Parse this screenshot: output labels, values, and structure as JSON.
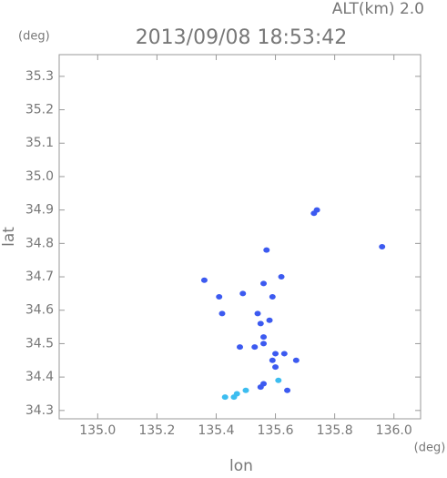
{
  "chart_data": {
    "type": "scatter",
    "title": "2013/09/08 18:53:42",
    "subtitle": "ALT(km) 2.0",
    "y_unit": "(deg)",
    "x_unit": "(deg)",
    "x_label": "lon",
    "y_label": "lat",
    "xlim": [
      134.87,
      136.09
    ],
    "ylim": [
      34.275,
      35.365
    ],
    "xticks": [
      {
        "value": 135.0,
        "label": "135.0"
      },
      135.2,
      135.4,
      135.6,
      135.8,
      {
        "value": 136.0,
        "label": "136.0"
      }
    ],
    "yticks": [
      34.3,
      34.4,
      34.5,
      34.6,
      34.7,
      34.8,
      34.9,
      {
        "value": 35.0,
        "label": "35.0"
      },
      35.1,
      35.2,
      35.3
    ],
    "series": [
      {
        "color": "#3c5af0",
        "x": [
          135.74,
          135.73,
          135.96,
          135.57,
          135.36,
          135.62,
          135.41,
          135.49,
          135.56,
          135.59,
          135.42,
          135.54,
          135.55,
          135.58,
          135.56,
          135.56,
          135.48,
          135.53,
          135.63,
          135.67,
          135.59,
          135.6,
          135.6,
          135.56,
          135.55,
          135.64
        ],
        "values": [
          34.9,
          34.89,
          34.79,
          34.78,
          34.69,
          34.7,
          34.64,
          34.65,
          34.68,
          34.64,
          34.59,
          34.59,
          34.56,
          34.57,
          34.52,
          34.5,
          34.49,
          34.49,
          34.47,
          34.45,
          34.45,
          34.43,
          34.47,
          34.38,
          34.37,
          34.36
        ]
      },
      {
        "color": "#3cbdf0",
        "x": [
          135.5,
          135.47,
          135.43,
          135.46,
          135.61
        ],
        "values": [
          34.36,
          34.35,
          34.34,
          34.34,
          34.39
        ]
      }
    ]
  }
}
